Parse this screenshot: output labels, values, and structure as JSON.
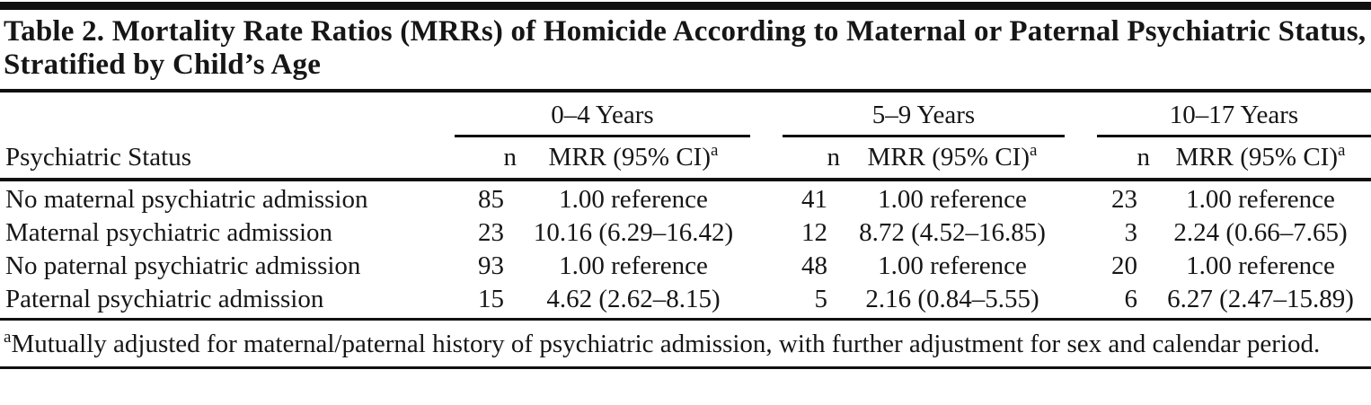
{
  "title": "Table 2. Mortality Rate Ratios (MRRs) of Homicide According to Maternal or Paternal Psychiatric Status, Stratified by Child’s Age",
  "table": {
    "stub_header": "Psychiatric Status",
    "age_groups": [
      "0–4 Years",
      "5–9 Years",
      "10–17 Years"
    ],
    "sub_headers": {
      "n": "n",
      "mrr": "MRR (95% CI)",
      "mrr_footnote_marker": "a"
    },
    "rows": [
      {
        "label": "No maternal psychiatric admission",
        "cells": [
          "85",
          "1.00 reference",
          "41",
          "1.00 reference",
          "23",
          "1.00 reference"
        ]
      },
      {
        "label": "Maternal psychiatric admission",
        "cells": [
          "23",
          "10.16 (6.29–16.42)",
          "12",
          "8.72 (4.52–16.85)",
          "3",
          "2.24 (0.66–7.65)"
        ]
      },
      {
        "label": "No paternal psychiatric admission",
        "cells": [
          "93",
          "1.00 reference",
          "48",
          "1.00 reference",
          "20",
          "1.00 reference"
        ]
      },
      {
        "label": "Paternal psychiatric admission",
        "cells": [
          "15",
          "4.62 (2.62–8.15)",
          "5",
          "2.16 (0.84–5.55)",
          "6",
          "6.27 (2.47–15.89)"
        ]
      }
    ]
  },
  "footnote": {
    "marker": "a",
    "text": "Mutually adjusted for maternal/paternal history of psychiatric admission, with further adjustment for sex and calendar period."
  }
}
